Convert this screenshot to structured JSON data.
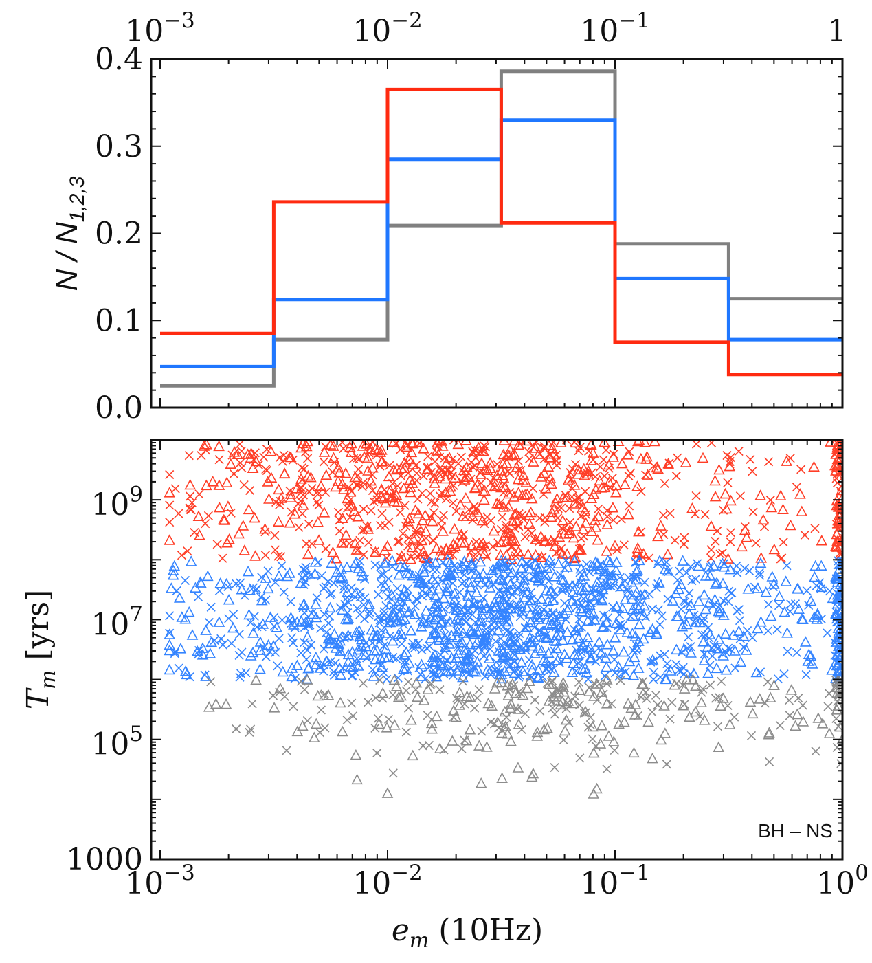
{
  "chart_data": [
    {
      "type": "histogram-step",
      "panel": "top",
      "ylabel": "N / N_{1,2,3}",
      "ylabel_parts": {
        "main": "N / N",
        "subscript": "1,2,3"
      },
      "xscale": "log",
      "xlim": [
        0.001,
        1
      ],
      "ylim": [
        0,
        0.4
      ],
      "x_ticks_top": [
        {
          "value": 0.001,
          "base": "10",
          "exp": "−3"
        },
        {
          "value": 0.01,
          "base": "10",
          "exp": "−2"
        },
        {
          "value": 0.1,
          "base": "10",
          "exp": "−1"
        },
        {
          "value": 1,
          "base": "1",
          "exp": ""
        }
      ],
      "y_ticks": [
        {
          "value": 0.0,
          "label": "0.0"
        },
        {
          "value": 0.1,
          "label": "0.1"
        },
        {
          "value": 0.2,
          "label": "0.2"
        },
        {
          "value": 0.3,
          "label": "0.3"
        },
        {
          "value": 0.4,
          "label": "0.4"
        }
      ],
      "bin_edges": [
        0.001,
        0.00316,
        0.01,
        0.0316,
        0.1,
        0.316,
        1.0
      ],
      "series": [
        {
          "name": "gray",
          "color": "#808080",
          "values": [
            0.025,
            0.078,
            0.209,
            0.386,
            0.188,
            0.125
          ]
        },
        {
          "name": "blue",
          "color": "#1f77ff",
          "values": [
            0.047,
            0.124,
            0.285,
            0.33,
            0.148,
            0.078
          ]
        },
        {
          "name": "red",
          "color": "#ff2a10",
          "values": [
            0.085,
            0.236,
            0.365,
            0.212,
            0.075,
            0.038
          ]
        }
      ]
    },
    {
      "type": "scatter",
      "panel": "bottom",
      "xlabel": "e_m (10Hz)",
      "xlabel_parts": {
        "main": "e",
        "subscript": "m",
        "rest": " (10Hz)"
      },
      "ylabel": "T_m [yrs]",
      "ylabel_parts": {
        "main": "T",
        "subscript": "m",
        "rest": " [yrs]"
      },
      "xscale": "log",
      "yscale": "log",
      "xlim": [
        0.001,
        1.0
      ],
      "ylim": [
        1000,
        10000000000
      ],
      "x_ticks": [
        {
          "value": 0.001,
          "base": "10",
          "exp": "−3"
        },
        {
          "value": 0.01,
          "base": "10",
          "exp": "−2"
        },
        {
          "value": 0.1,
          "base": "10",
          "exp": "−1"
        },
        {
          "value": 1,
          "base": "10",
          "exp": "0"
        }
      ],
      "y_ticks": [
        {
          "value": 1000,
          "base": "1000",
          "exp": ""
        },
        {
          "value": 100000,
          "base": "10",
          "exp": "5"
        },
        {
          "value": 10000000,
          "base": "10",
          "exp": "7"
        },
        {
          "value": 1000000000,
          "base": "10",
          "exp": "9"
        }
      ],
      "annotation": "BH – NS",
      "marker_types": [
        "triangle",
        "cross"
      ],
      "series": [
        {
          "name": "red (T > 1e8 yr)",
          "color": "#ff2a10",
          "y_range": [
            100000000,
            10000000000
          ],
          "x_range": [
            0.0011,
            1.0
          ],
          "approx_points": 900,
          "density_peak_x": 0.02,
          "markers": [
            "triangle",
            "cross"
          ]
        },
        {
          "name": "blue (1e6 < T < 1e8 yr)",
          "color": "#1f77ff",
          "y_range": [
            1000000,
            100000000
          ],
          "x_range": [
            0.0011,
            1.0
          ],
          "approx_points": 1400,
          "density_peak_x": 0.03,
          "markers": [
            "triangle",
            "cross"
          ]
        },
        {
          "name": "gray (T < 1e6 yr)",
          "color": "#808080",
          "y_range": [
            5000,
            1000000
          ],
          "x_range": [
            0.0015,
            1.0
          ],
          "approx_points": 320,
          "density_peak_x": 0.05,
          "markers": [
            "triangle",
            "cross"
          ]
        }
      ]
    }
  ]
}
